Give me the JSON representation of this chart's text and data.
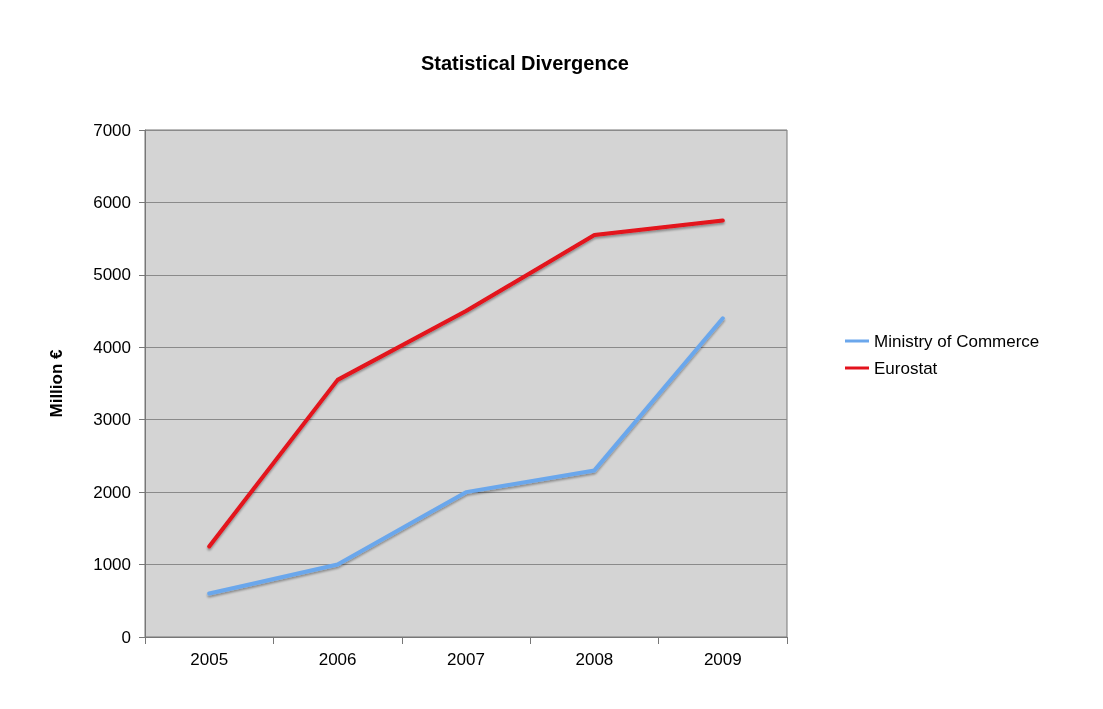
{
  "chart_data": {
    "type": "line",
    "title": "Statistical Divergence",
    "ylabel": "Million €",
    "categories": [
      "2005",
      "2006",
      "2007",
      "2008",
      "2009"
    ],
    "series": [
      {
        "name": "Ministry of Commerce",
        "color": "#6ba7ec",
        "values": [
          600,
          1000,
          2000,
          2300,
          4400
        ]
      },
      {
        "name": "Eurostat",
        "color": "#e3121c",
        "values": [
          1250,
          3550,
          4500,
          5550,
          5750
        ]
      }
    ],
    "ylim": [
      0,
      7000
    ],
    "yticks": [
      0,
      1000,
      2000,
      3000,
      4000,
      5000,
      6000,
      7000
    ],
    "grid": "y",
    "legend": "right",
    "marker": "none",
    "line_style": "solid"
  }
}
